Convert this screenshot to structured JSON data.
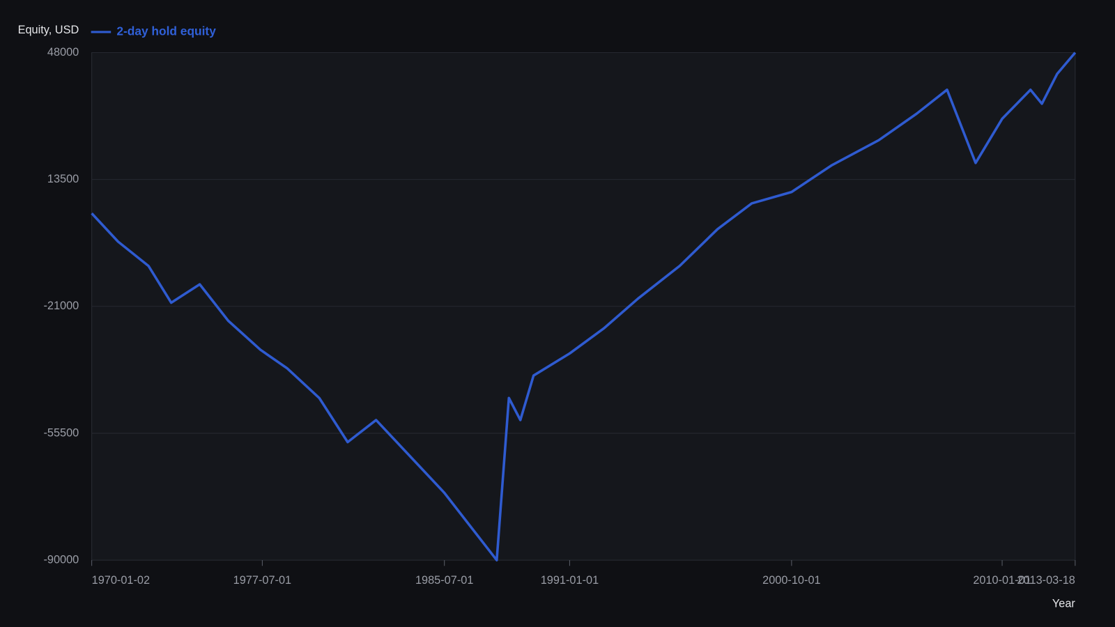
{
  "chart_data": {
    "type": "line",
    "y_label": "Equity, USD",
    "x_label": "Year",
    "x": [
      "1970-01-02",
      "1971-03-01",
      "1972-07-01",
      "1973-07-01",
      "1974-10-01",
      "1976-01-01",
      "1977-06-01",
      "1978-08-01",
      "1980-01-01",
      "1981-04-01",
      "1982-07-01",
      "1985-07-01",
      "1987-10-19",
      "1988-05-01",
      "1988-11-01",
      "1989-06-01",
      "1991-01-01",
      "1992-07-01",
      "1994-01-01",
      "1995-11-01",
      "1997-07-01",
      "1999-01-01",
      "2000-10-01",
      "2002-07-01",
      "2004-08-01",
      "2006-04-01",
      "2007-08-01",
      "2008-11-01",
      "2010-01-01",
      "2011-04-01",
      "2011-10-01",
      "2012-06-01",
      "2013-03-18"
    ],
    "series": [
      {
        "name": "2-day hold equity",
        "color": "#2f5bd0",
        "values": [
          4300,
          -3400,
          -10000,
          -20000,
          -15000,
          -24900,
          -32800,
          -37800,
          -45900,
          -57900,
          -51900,
          -71700,
          -90000,
          -45900,
          -51900,
          -39800,
          -33800,
          -27000,
          -18900,
          -10000,
          0,
          7000,
          10100,
          17300,
          24200,
          31400,
          37900,
          18000,
          30000,
          37900,
          34100,
          42200,
          48000
        ]
      }
    ],
    "xlim": [
      "1970-01-02",
      "2013-03-18"
    ],
    "xticks": [
      "1970-01-02",
      "1977-07-01",
      "1985-07-01",
      "1991-01-01",
      "2000-10-01",
      "2010-01-01",
      "2013-03-18"
    ],
    "ylim": [
      -90000,
      48000
    ],
    "yticks": [
      -90000,
      -55500,
      -21000,
      13500,
      48000
    ],
    "grid": true
  }
}
